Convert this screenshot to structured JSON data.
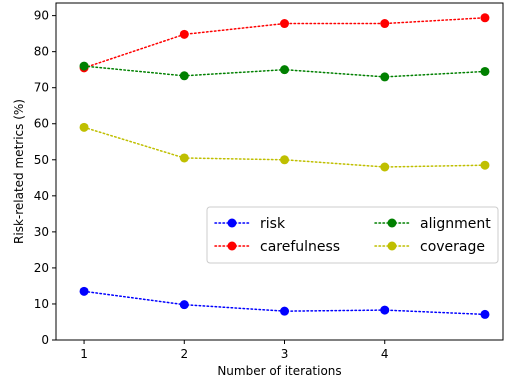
{
  "chart_data": {
    "type": "line",
    "x": [
      1,
      2,
      3,
      4,
      5
    ],
    "xticks": [
      "1",
      "2",
      "3",
      "4"
    ],
    "yticks": [
      "0",
      "10",
      "20",
      "30",
      "40",
      "50",
      "60",
      "70",
      "80",
      "90"
    ],
    "xlim": [
      0.72,
      5.18
    ],
    "ylim": [
      0,
      93.5
    ],
    "xlabel": "Number of iterations",
    "ylabel": "Risk-related metrics (%)",
    "grid": false,
    "legend": {
      "placement": "center-right",
      "columns": 2
    },
    "series": [
      {
        "name": "risk",
        "color": "#0000ff",
        "values": [
          13.5,
          9.8,
          8.0,
          8.3,
          7.1
        ]
      },
      {
        "name": "carefulness",
        "color": "#ff0000",
        "values": [
          75.5,
          84.8,
          87.8,
          87.8,
          89.4
        ]
      },
      {
        "name": "alignment",
        "color": "#008000",
        "values": [
          76.0,
          73.3,
          75.0,
          73.0,
          74.5
        ]
      },
      {
        "name": "coverage",
        "color": "#bfbf00",
        "values": [
          59.0,
          50.5,
          50.0,
          48.0,
          48.5
        ]
      }
    ]
  }
}
